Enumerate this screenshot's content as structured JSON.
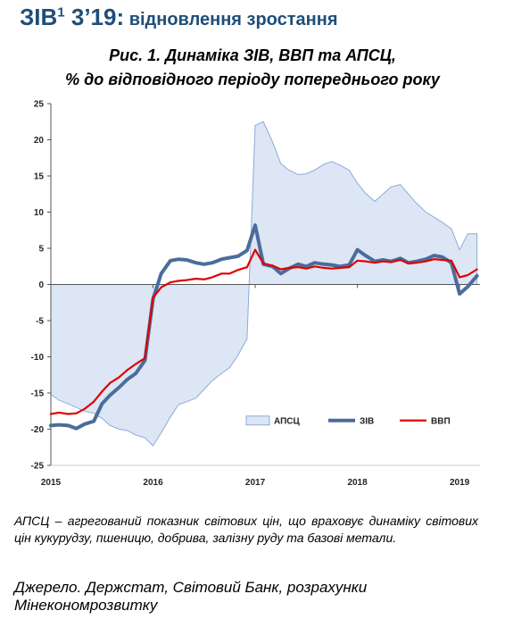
{
  "header": {
    "prefix": "ЗІВ",
    "sup": "1",
    "period": " 3’19:",
    "subtitle": " відновлення зростання"
  },
  "figure": {
    "title_line1": "Рис. 1. Динаміка ЗІВ, ВВП та АПСЦ,",
    "title_line2": "% до відповідного періоду попереднього року"
  },
  "note": "АПСЦ – агрегований показник світових цін, що враховує динаміку світових цін кукурудзу, пшеницю, добрива, залізну руду та базові метали.",
  "source": "Джерело. Держстат, Світовий Банк, розрахунки Мінекономрозвитку",
  "chart_data": {
    "type": "line",
    "title": "Рис. 1. Динаміка ЗІВ, ВВП та АПСЦ, % до відповідного періоду попереднього року",
    "x_unit": "year (fractional)",
    "xlim": [
      2015.0,
      2019.2
    ],
    "ylim": [
      -25,
      25
    ],
    "y_ticks": [
      -25,
      -20,
      -15,
      -10,
      -5,
      0,
      5,
      10,
      15,
      20,
      25
    ],
    "x_ticks": [
      2015,
      2016,
      2017,
      2018,
      2019
    ],
    "x_tick_labels": [
      "2015",
      "2016",
      "2017",
      "2018",
      "2019"
    ],
    "grid": false,
    "legend": "lower-right",
    "series": [
      {
        "name": "АПСЦ",
        "kind": "area",
        "color": "#dce6f4",
        "stroke": "#8eaadb",
        "points": [
          [
            2015.0,
            -15.2
          ],
          [
            2015.08,
            -16.0
          ],
          [
            2015.17,
            -16.5
          ],
          [
            2015.25,
            -17.0
          ],
          [
            2015.33,
            -17.5
          ],
          [
            2015.42,
            -17.8
          ],
          [
            2015.5,
            -18.5
          ],
          [
            2015.58,
            -19.5
          ],
          [
            2015.67,
            -20.0
          ],
          [
            2015.75,
            -20.2
          ],
          [
            2015.83,
            -20.8
          ],
          [
            2015.92,
            -21.2
          ],
          [
            2016.0,
            -22.3
          ],
          [
            2016.08,
            -20.5
          ],
          [
            2016.17,
            -18.3
          ],
          [
            2016.25,
            -16.6
          ],
          [
            2016.33,
            -16.2
          ],
          [
            2016.42,
            -15.7
          ],
          [
            2016.5,
            -14.5
          ],
          [
            2016.58,
            -13.3
          ],
          [
            2016.67,
            -12.3
          ],
          [
            2016.75,
            -11.5
          ],
          [
            2016.83,
            -9.8
          ],
          [
            2016.92,
            -7.5
          ],
          [
            2017.0,
            22.0
          ],
          [
            2017.08,
            22.5
          ],
          [
            2017.17,
            19.7
          ],
          [
            2017.25,
            16.7
          ],
          [
            2017.33,
            15.8
          ],
          [
            2017.42,
            15.2
          ],
          [
            2017.5,
            15.3
          ],
          [
            2017.58,
            15.8
          ],
          [
            2017.67,
            16.6
          ],
          [
            2017.75,
            17.0
          ],
          [
            2017.83,
            16.5
          ],
          [
            2017.92,
            15.8
          ],
          [
            2018.0,
            14.0
          ],
          [
            2018.08,
            12.6
          ],
          [
            2018.17,
            11.5
          ],
          [
            2018.25,
            12.5
          ],
          [
            2018.33,
            13.5
          ],
          [
            2018.42,
            13.8
          ],
          [
            2018.5,
            12.5
          ],
          [
            2018.58,
            11.2
          ],
          [
            2018.67,
            10.0
          ],
          [
            2018.75,
            9.3
          ],
          [
            2018.83,
            8.6
          ],
          [
            2018.92,
            7.7
          ],
          [
            2019.0,
            4.8
          ],
          [
            2019.08,
            7.0
          ],
          [
            2019.17,
            7.0
          ]
        ]
      },
      {
        "name": "ЗІВ",
        "kind": "line",
        "color": "#4a6d9a",
        "width": 4,
        "points": [
          [
            2015.0,
            -19.5
          ],
          [
            2015.08,
            -19.4
          ],
          [
            2015.17,
            -19.5
          ],
          [
            2015.25,
            -19.9
          ],
          [
            2015.33,
            -19.3
          ],
          [
            2015.42,
            -18.9
          ],
          [
            2015.5,
            -16.5
          ],
          [
            2015.58,
            -15.3
          ],
          [
            2015.67,
            -14.2
          ],
          [
            2015.75,
            -13.1
          ],
          [
            2015.83,
            -12.3
          ],
          [
            2015.92,
            -10.5
          ],
          [
            2016.0,
            -2.0
          ],
          [
            2016.08,
            1.5
          ],
          [
            2016.17,
            3.3
          ],
          [
            2016.25,
            3.5
          ],
          [
            2016.33,
            3.4
          ],
          [
            2016.42,
            3.0
          ],
          [
            2016.5,
            2.8
          ],
          [
            2016.58,
            3.0
          ],
          [
            2016.67,
            3.5
          ],
          [
            2016.75,
            3.7
          ],
          [
            2016.83,
            3.9
          ],
          [
            2016.92,
            4.7
          ],
          [
            2017.0,
            8.2
          ],
          [
            2017.08,
            2.8
          ],
          [
            2017.17,
            2.5
          ],
          [
            2017.25,
            1.5
          ],
          [
            2017.33,
            2.2
          ],
          [
            2017.42,
            2.8
          ],
          [
            2017.5,
            2.5
          ],
          [
            2017.58,
            3.0
          ],
          [
            2017.67,
            2.8
          ],
          [
            2017.75,
            2.7
          ],
          [
            2017.83,
            2.5
          ],
          [
            2017.92,
            2.7
          ],
          [
            2018.0,
            4.8
          ],
          [
            2018.08,
            4.0
          ],
          [
            2018.17,
            3.2
          ],
          [
            2018.25,
            3.4
          ],
          [
            2018.33,
            3.2
          ],
          [
            2018.42,
            3.6
          ],
          [
            2018.5,
            3.0
          ],
          [
            2018.58,
            3.2
          ],
          [
            2018.67,
            3.5
          ],
          [
            2018.75,
            4.0
          ],
          [
            2018.83,
            3.8
          ],
          [
            2018.92,
            3.0
          ],
          [
            2019.0,
            -1.3
          ],
          [
            2019.08,
            -0.3
          ],
          [
            2019.17,
            1.2
          ]
        ]
      },
      {
        "name": "ВВП",
        "kind": "line",
        "color": "#e00000",
        "width": 2.2,
        "points": [
          [
            2015.0,
            -17.9
          ],
          [
            2015.08,
            -17.7
          ],
          [
            2015.17,
            -17.9
          ],
          [
            2015.25,
            -17.8
          ],
          [
            2015.33,
            -17.2
          ],
          [
            2015.42,
            -16.2
          ],
          [
            2015.5,
            -14.8
          ],
          [
            2015.58,
            -13.6
          ],
          [
            2015.67,
            -12.8
          ],
          [
            2015.75,
            -11.8
          ],
          [
            2015.83,
            -11.0
          ],
          [
            2015.92,
            -10.2
          ],
          [
            2016.0,
            -1.8
          ],
          [
            2016.08,
            -0.4
          ],
          [
            2016.17,
            0.3
          ],
          [
            2016.25,
            0.5
          ],
          [
            2016.33,
            0.6
          ],
          [
            2016.42,
            0.8
          ],
          [
            2016.5,
            0.7
          ],
          [
            2016.58,
            1.0
          ],
          [
            2016.67,
            1.5
          ],
          [
            2016.75,
            1.5
          ],
          [
            2016.83,
            2.0
          ],
          [
            2016.92,
            2.4
          ],
          [
            2017.0,
            4.8
          ],
          [
            2017.08,
            2.9
          ],
          [
            2017.17,
            2.6
          ],
          [
            2017.25,
            2.1
          ],
          [
            2017.33,
            2.3
          ],
          [
            2017.42,
            2.4
          ],
          [
            2017.5,
            2.2
          ],
          [
            2017.58,
            2.5
          ],
          [
            2017.67,
            2.3
          ],
          [
            2017.75,
            2.2
          ],
          [
            2017.83,
            2.3
          ],
          [
            2017.92,
            2.4
          ],
          [
            2018.0,
            3.3
          ],
          [
            2018.08,
            3.2
          ],
          [
            2018.17,
            3.0
          ],
          [
            2018.25,
            3.2
          ],
          [
            2018.33,
            3.1
          ],
          [
            2018.42,
            3.4
          ],
          [
            2018.5,
            2.9
          ],
          [
            2018.58,
            3.0
          ],
          [
            2018.67,
            3.2
          ],
          [
            2018.75,
            3.5
          ],
          [
            2018.83,
            3.4
          ],
          [
            2018.92,
            3.3
          ],
          [
            2019.0,
            1.0
          ],
          [
            2019.08,
            1.3
          ],
          [
            2019.17,
            2.1
          ]
        ]
      }
    ]
  }
}
